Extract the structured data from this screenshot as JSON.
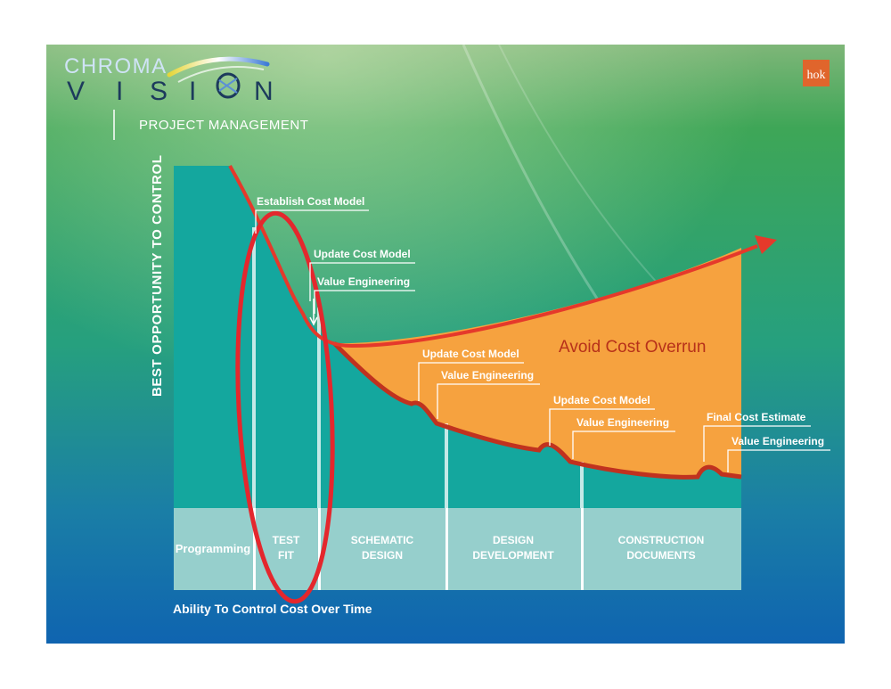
{
  "logo": {
    "word_top": "CHROMA",
    "word_bottom": "VISION",
    "bottom_letters_left": [
      "V",
      "I",
      "S",
      "I"
    ],
    "bottom_letter_right": "N",
    "corner_mark": "hok"
  },
  "header": {
    "subtitle": "PROJECT MANAGEMENT"
  },
  "colors": {
    "teal": "#14a79e",
    "phase_band": "#96cfcc",
    "orange": "#f6a23f",
    "cost_curve": "#c0321f",
    "arrow": "#e5392b",
    "highlight_ellipse": "#e4272d",
    "overrun_text": "#b7311a",
    "brand_orange": "#e0652c"
  },
  "diagram": {
    "y_axis_label": "BEST OPPORTUNITY TO CONTROL",
    "x_axis_label": "Ability To Control Cost Over Time",
    "region_label": "Avoid Cost Overrun",
    "phases": [
      {
        "line1": "Programming",
        "line2": ""
      },
      {
        "line1": "TEST",
        "line2": "FIT"
      },
      {
        "line1": "SCHEMATIC",
        "line2": "DESIGN"
      },
      {
        "line1": "DESIGN",
        "line2": "DEVELOPMENT"
      },
      {
        "line1": "CONSTRUCTION",
        "line2": "DOCUMENTS"
      }
    ],
    "milestones": [
      "Establish Cost Model",
      "Update Cost Model",
      "Value Engineering",
      "Update Cost Model",
      "Value Engineering",
      "Update Cost Model",
      "Value Engineering",
      "Final Cost Estimate",
      "Value Engineering"
    ]
  }
}
